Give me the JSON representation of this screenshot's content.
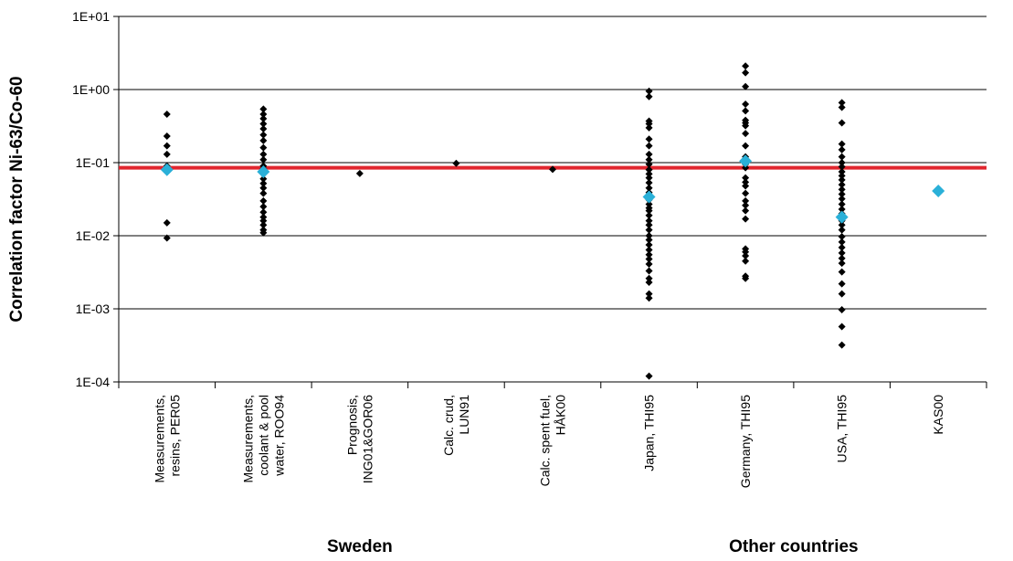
{
  "chart_data": {
    "type": "scatter",
    "ylabel": "Correlation factor Ni-63/Co-60",
    "yscale": "log",
    "ylim": [
      0.0001,
      10
    ],
    "y_ticks": [
      {
        "value": 0.0001,
        "label": "1E-04"
      },
      {
        "value": 0.001,
        "label": "1E-03"
      },
      {
        "value": 0.01,
        "label": "1E-02"
      },
      {
        "value": 0.1,
        "label": "1E-01"
      },
      {
        "value": 1,
        "label": "1E+00"
      },
      {
        "value": 10,
        "label": "1E+01"
      }
    ],
    "grid": true,
    "categories": [
      [
        "Measurements,",
        "resins, PER05"
      ],
      [
        "Measurements,",
        "coolant & pool",
        "water, ROO94"
      ],
      [
        "Prognosis,",
        "ING01&GOR06"
      ],
      [
        "Calc. crud,",
        "LUN91"
      ],
      [
        "Calc. spent fuel,",
        "HÅK00"
      ],
      [
        "Japan, THI95"
      ],
      [
        "Germany, THI95"
      ],
      [
        "USA, THI95"
      ],
      [
        "KAS00"
      ]
    ],
    "groups": [
      {
        "label": "Sweden",
        "from": 0,
        "to": 4
      },
      {
        "label": "Other countries",
        "from": 5,
        "to": 8
      }
    ],
    "reference_line": {
      "value": 0.085,
      "color": "#e0262e"
    },
    "colors": {
      "points": "#000000",
      "mean": "#2ab0d8",
      "grid": "#000000"
    },
    "points": [
      [
        0.46,
        0.23,
        0.17,
        0.13,
        0.09,
        0.082,
        0.076,
        0.015,
        0.0093
      ],
      [
        0.54,
        0.46,
        0.4,
        0.34,
        0.29,
        0.24,
        0.2,
        0.16,
        0.13,
        0.11,
        0.09,
        0.083,
        0.077,
        0.07,
        0.06,
        0.052,
        0.045,
        0.038,
        0.03,
        0.025,
        0.021,
        0.018,
        0.016,
        0.014,
        0.012,
        0.011
      ],
      [
        0.071
      ],
      [
        0.098
      ],
      [
        0.081
      ],
      [
        0.95,
        0.8,
        0.37,
        0.34,
        0.3,
        0.21,
        0.17,
        0.13,
        0.11,
        0.095,
        0.08,
        0.07,
        0.062,
        0.053,
        0.045,
        0.039,
        0.036,
        0.033,
        0.031,
        0.027,
        0.024,
        0.022,
        0.019,
        0.016,
        0.014,
        0.012,
        0.01,
        0.0088,
        0.0075,
        0.0064,
        0.0055,
        0.0048,
        0.0041,
        0.0033,
        0.0026,
        0.0023,
        0.0016,
        0.0014,
        0.00012
      ],
      [
        2.1,
        1.7,
        1.1,
        0.63,
        0.51,
        0.38,
        0.35,
        0.32,
        0.25,
        0.17,
        0.12,
        0.11,
        0.095,
        0.085,
        0.062,
        0.054,
        0.048,
        0.038,
        0.03,
        0.026,
        0.022,
        0.017,
        0.0066,
        0.006,
        0.0053,
        0.0045,
        0.0028,
        0.0026
      ],
      [
        0.66,
        0.57,
        0.35,
        0.18,
        0.15,
        0.12,
        0.1,
        0.088,
        0.075,
        0.066,
        0.058,
        0.05,
        0.043,
        0.037,
        0.032,
        0.027,
        0.023,
        0.02,
        0.016,
        0.014,
        0.012,
        0.0097,
        0.0082,
        0.0069,
        0.0058,
        0.0049,
        0.0042,
        0.0032,
        0.0022,
        0.0016,
        0.00097,
        0.00057,
        0.00032
      ],
      []
    ],
    "means": [
      0.08,
      0.075,
      null,
      null,
      null,
      0.034,
      0.105,
      0.018,
      0.041
    ]
  }
}
